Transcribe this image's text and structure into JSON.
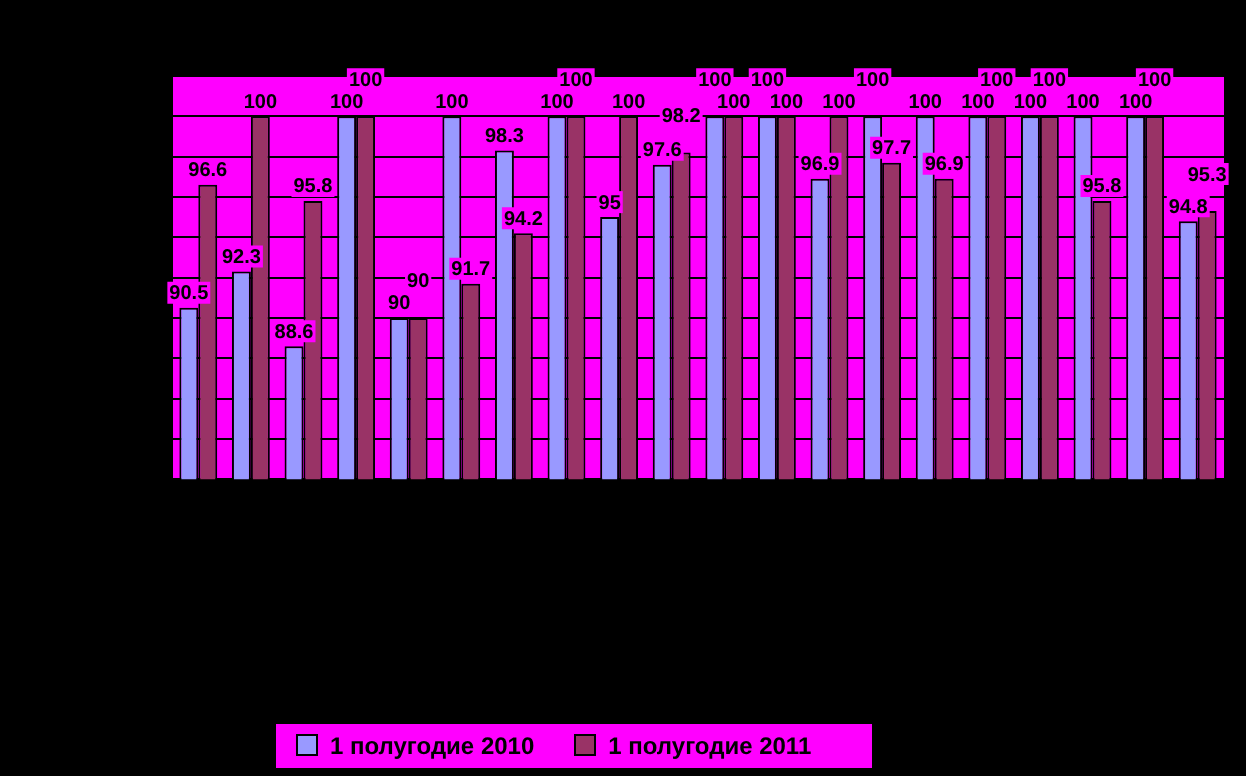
{
  "chart_data": {
    "type": "bar",
    "categories": [
      null,
      null,
      null,
      null,
      null,
      null,
      null,
      null,
      null,
      null,
      null,
      null,
      null,
      null,
      null,
      null,
      null,
      null,
      null,
      null
    ],
    "series": [
      {
        "name": "1 полугодие 2010",
        "color": "#9999ff",
        "values": [
          90.5,
          92.3,
          88.6,
          100,
          90,
          100,
          98.3,
          100,
          95,
          97.6,
          100,
          100,
          96.9,
          100,
          100,
          100,
          100,
          100,
          100,
          94.8
        ]
      },
      {
        "name": "1 полугодие 2011",
        "color": "#993366",
        "values": [
          96.6,
          100,
          95.8,
          100,
          90,
          91.7,
          94.2,
          100,
          100,
          98.2,
          100,
          100,
          100,
          97.7,
          96.9,
          100,
          100,
          95.8,
          100,
          95.3
        ]
      }
    ],
    "ylim": [
      82,
      102
    ],
    "yticks": [
      {
        "value": 82,
        "label": null
      },
      {
        "value": 84,
        "label": null
      },
      {
        "value": 86,
        "label": null
      },
      {
        "value": 88,
        "label": null
      },
      {
        "value": 90,
        "label": null
      },
      {
        "value": 92,
        "label": null
      },
      {
        "value": 94,
        "label": null
      },
      {
        "value": 96,
        "label": null
      },
      {
        "value": 98,
        "label": null
      },
      {
        "value": 100,
        "label": null
      },
      {
        "value": 102,
        "label": null
      }
    ],
    "grid": "y",
    "legend": "bottom",
    "data_labels": true
  }
}
